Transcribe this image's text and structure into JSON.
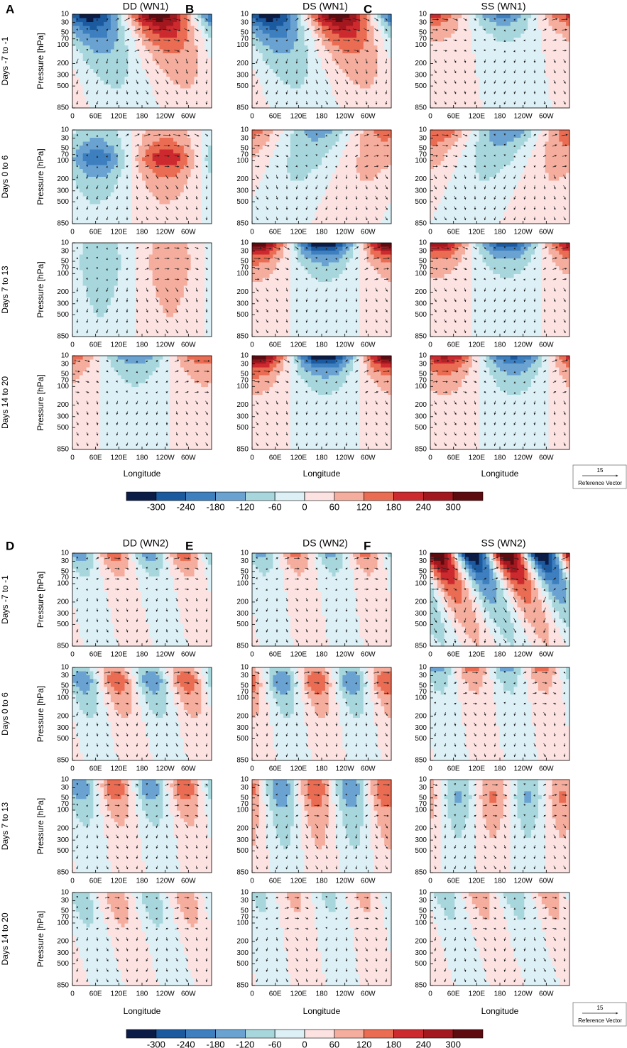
{
  "figure": {
    "blocks": [
      {
        "panels": [
          {
            "letter": "A",
            "title": "DD (WN1)"
          },
          {
            "letter": "B",
            "title": "DS (WN1)"
          },
          {
            "letter": "C",
            "title": "SS (WN1)"
          }
        ]
      },
      {
        "panels": [
          {
            "letter": "D",
            "title": "DD (WN2)"
          },
          {
            "letter": "E",
            "title": "DS (WN2)"
          },
          {
            "letter": "F",
            "title": "SS (WN2)"
          }
        ]
      }
    ],
    "row_labels": [
      "Days -7 to -1",
      "Days 0 to 6",
      "Days 7 to 13",
      "Days 14 to 20"
    ],
    "ylabel": "Pressure [hPa]",
    "xlabel": "Longitude",
    "xlim": [
      0,
      360
    ],
    "xticks": [
      0,
      {
        "value": 60,
        "label": "60E"
      },
      {
        "value": 120,
        "label": "120E"
      },
      180,
      {
        "value": 240,
        "label": "120W"
      },
      {
        "value": 300,
        "label": "60W"
      }
    ],
    "ylim": [
      10,
      850
    ],
    "yticks": [
      10,
      30,
      50,
      70,
      100,
      200,
      300,
      500,
      850
    ],
    "colorbar": {
      "levels": [
        -300,
        -240,
        -180,
        -120,
        -60,
        0,
        60,
        120,
        180,
        240,
        300
      ],
      "colors": [
        "#0b1c47",
        "#1c5aa0",
        "#3d7fbf",
        "#6aa3d2",
        "#a7d7dc",
        "#dcf0f6",
        "#fde2e2",
        "#f5ad9d",
        "#ea6c52",
        "#cc2a2e",
        "#a3181f",
        "#5e0b10"
      ]
    },
    "reference_vector": {
      "value": 15,
      "label": "Reference Vector"
    }
  }
}
